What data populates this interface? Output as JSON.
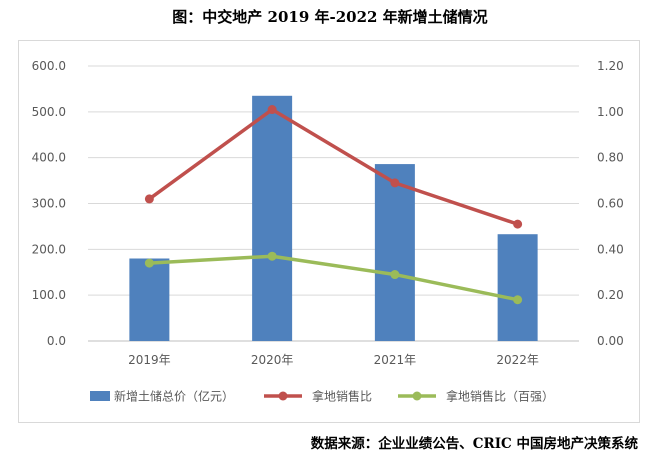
{
  "chart_data": {
    "type": "bar",
    "title": "图：中交地产 2019 年-2022 年新增土储情况",
    "source": "数据来源：企业业绩公告、CRIC 中国房地产决策系统",
    "categories": [
      "2019年",
      "2020年",
      "2021年",
      "2022年"
    ],
    "series": [
      {
        "name": "新增土储总价（亿元）",
        "type": "bar",
        "axis": "left",
        "color": "#4f81bd",
        "values": [
          180.0,
          535.0,
          386.0,
          233.0
        ]
      },
      {
        "name": "拿地销售比",
        "type": "line",
        "axis": "right",
        "color": "#c0504d",
        "values": [
          0.62,
          1.01,
          0.69,
          0.51
        ]
      },
      {
        "name": "拿地销售比（百强）",
        "type": "line",
        "axis": "right",
        "color": "#9bbb59",
        "values": [
          0.34,
          0.37,
          0.29,
          0.18
        ]
      }
    ],
    "left_axis": {
      "min": 0,
      "max": 600,
      "step": 100,
      "ticks": [
        "0.0",
        "100.0",
        "200.0",
        "300.0",
        "400.0",
        "500.0",
        "600.0"
      ]
    },
    "right_axis": {
      "min": 0,
      "max": 1.2,
      "step": 0.2,
      "ticks": [
        "0.00",
        "0.20",
        "0.40",
        "0.60",
        "0.80",
        "1.00",
        "1.20"
      ]
    },
    "xlabel": "",
    "ylabel": "",
    "grid": true,
    "legend_position": "bottom"
  }
}
